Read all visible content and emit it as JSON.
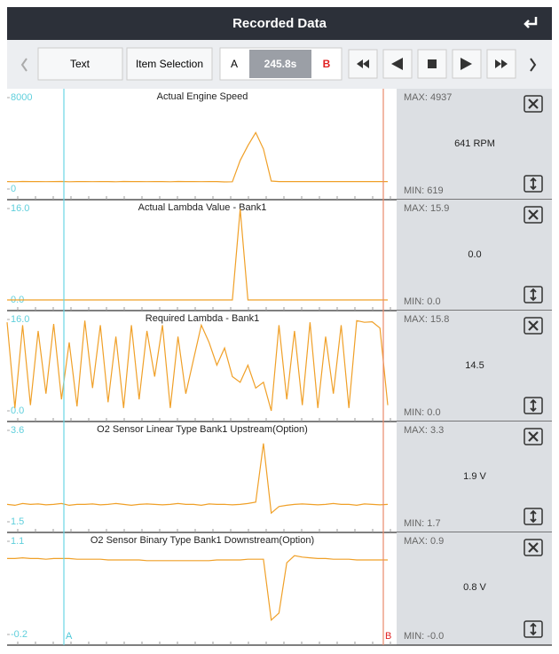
{
  "header": {
    "title": "Recorded Data"
  },
  "toolbar": {
    "text_button": "Text",
    "item_selection_button": "Item Selection",
    "cursor_a": "A",
    "time": "245.8s",
    "cursor_b": "B"
  },
  "cursors": {
    "a": "A",
    "b": "B"
  },
  "chart_data": [
    {
      "type": "line",
      "title": "Actual Engine Speed",
      "color": "#f0a028",
      "ylim": [
        0,
        8000
      ],
      "yticks": [
        0,
        8000
      ],
      "values": [
        650,
        640,
        660,
        650,
        655,
        645,
        650,
        660,
        640,
        650,
        650,
        645,
        655,
        650,
        640,
        660,
        650,
        650,
        645,
        655,
        650,
        640,
        660,
        650,
        650,
        645,
        655,
        650,
        619,
        640,
        2500,
        3800,
        4937,
        3500,
        700,
        650,
        650,
        650,
        650,
        650,
        650,
        650,
        650,
        650,
        650,
        650,
        650,
        650,
        650,
        650
      ]
    },
    {
      "type": "line",
      "title": "Actual Lambda Value - Bank1",
      "color": "#f0a028",
      "ylim": [
        0,
        16
      ],
      "yticks": [
        {
          "value": 0,
          "label": "0.0"
        },
        {
          "value": 16,
          "label": "16.0"
        }
      ],
      "values": [
        0,
        0,
        0,
        0,
        0,
        0,
        0,
        0,
        0,
        0,
        0,
        0,
        0,
        0,
        0,
        0,
        0,
        0,
        0,
        0,
        0,
        0,
        0,
        0,
        0,
        0,
        0,
        0,
        0,
        0,
        15.9,
        0,
        0,
        0,
        0,
        0,
        0,
        0,
        0,
        0,
        0,
        0,
        0,
        0,
        0,
        0,
        0,
        0,
        0,
        0
      ]
    },
    {
      "type": "line",
      "title": "Required Lambda - Bank1",
      "color": "#f0a028",
      "ylim": [
        0,
        16
      ],
      "yticks": [
        {
          "value": 0,
          "label": "0.0"
        },
        {
          "value": 16,
          "label": "16.0"
        }
      ],
      "values": [
        15.5,
        0.5,
        15,
        1,
        14,
        3,
        15.2,
        2,
        12,
        0.8,
        15.8,
        4,
        15,
        1.5,
        13,
        0.5,
        15,
        2,
        14,
        6,
        15,
        0.5,
        13,
        3,
        9,
        15,
        12,
        8,
        11,
        6,
        5,
        8,
        4,
        5,
        0,
        15,
        2,
        14,
        1,
        15.5,
        0.5,
        13,
        3,
        15,
        0.5,
        15.8,
        15.5,
        15.6,
        14.5,
        1
      ]
    },
    {
      "type": "line",
      "title": "O2 Sensor Linear Type Bank1 Upstream(Option)",
      "color": "#f0a028",
      "ylim": [
        1.5,
        3.6
      ],
      "yticks": [
        1.5,
        3.6
      ],
      "values": [
        1.9,
        1.88,
        1.92,
        1.9,
        1.91,
        1.89,
        1.9,
        1.92,
        1.88,
        1.9,
        1.9,
        1.91,
        1.89,
        1.9,
        1.92,
        1.9,
        1.88,
        1.9,
        1.91,
        1.9,
        1.89,
        1.9,
        1.92,
        1.9,
        1.9,
        1.88,
        1.91,
        1.9,
        1.9,
        1.89,
        1.9,
        1.92,
        1.95,
        3.3,
        1.7,
        1.85,
        1.88,
        1.9,
        1.91,
        1.9,
        1.89,
        1.9,
        1.92,
        1.9,
        1.9,
        1.88,
        1.91,
        1.9,
        1.89,
        1.9
      ]
    },
    {
      "type": "line",
      "title": "O2 Sensor Binary Type Bank1 Downstream(Option)",
      "color": "#f0a028",
      "ylim": [
        -0.2,
        1.1
      ],
      "yticks": [
        -0.2,
        1.1
      ],
      "values": [
        0.86,
        0.86,
        0.87,
        0.86,
        0.86,
        0.85,
        0.86,
        0.86,
        0.86,
        0.85,
        0.85,
        0.85,
        0.85,
        0.84,
        0.84,
        0.84,
        0.84,
        0.84,
        0.83,
        0.83,
        0.83,
        0.83,
        0.83,
        0.83,
        0.83,
        0.83,
        0.83,
        0.84,
        0.84,
        0.84,
        0.84,
        0.85,
        0.85,
        0.85,
        0.0,
        0.1,
        0.8,
        0.9,
        0.88,
        0.87,
        0.86,
        0.86,
        0.85,
        0.85,
        0.85,
        0.84,
        0.84,
        0.84,
        0.84,
        0.84
      ]
    }
  ],
  "readouts": [
    {
      "max": "MAX: 4937",
      "current": "641 RPM",
      "min": "MIN: 619"
    },
    {
      "max": "MAX: 15.9",
      "current": "0.0",
      "min": "MIN: 0.0"
    },
    {
      "max": "MAX: 15.8",
      "current": "14.5",
      "min": "MIN: 0.0"
    },
    {
      "max": "MAX: 3.3",
      "current": "1.9 V",
      "min": "MIN: 1.7"
    },
    {
      "max": "MAX: 0.9",
      "current": "0.8 V",
      "min": "MIN: -0.0"
    }
  ]
}
